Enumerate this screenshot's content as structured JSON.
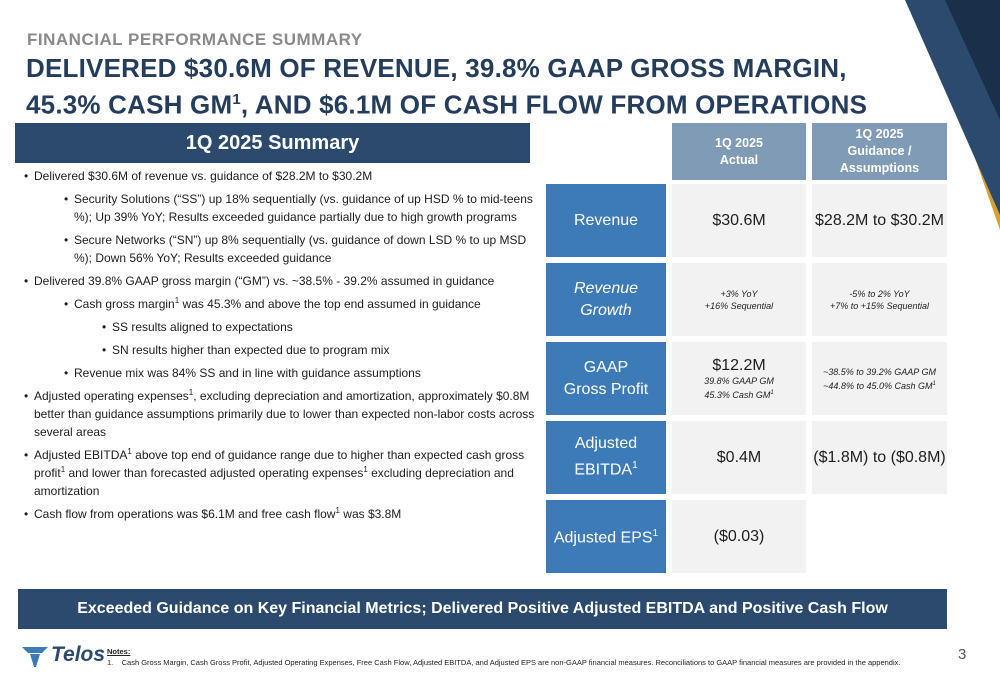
{
  "eyebrow": "FINANCIAL PERFORMANCE SUMMARY",
  "headline": {
    "line1": "DELIVERED $30.6M OF REVENUE, 39.8% GAAP GROSS MARGIN,",
    "line2_a": "45.3% CASH GM",
    "line2_sup": "1",
    "line2_b": ", AND $6.1M OF CASH FLOW FROM OPERATIONS"
  },
  "summary": {
    "title": "1Q 2025 Summary",
    "bullets": [
      {
        "level": 1,
        "parts": [
          "Delivered $30.6M of revenue vs. guidance of $28.2M to $30.2M"
        ]
      },
      {
        "level": 2,
        "parts": [
          "Security Solutions (“SS”) up 18% sequentially (vs. guidance of up HSD % to mid-teens %); Up 39% YoY; Results exceeded guidance partially due to high growth programs"
        ]
      },
      {
        "level": 2,
        "parts": [
          "Secure Networks (“SN”) up 8% sequentially (vs. guidance of down LSD % to up MSD %); Down 56% YoY; Results exceeded guidance"
        ]
      },
      {
        "level": 1,
        "parts": [
          "Delivered 39.8% GAAP gross margin (“GM”) vs. ~38.5% - 39.2% assumed in guidance"
        ]
      },
      {
        "level": 2,
        "parts": [
          "Cash gross margin",
          "1",
          " was 45.3% and above the top end assumed in guidance"
        ]
      },
      {
        "level": 3,
        "parts": [
          "SS results aligned to expectations"
        ]
      },
      {
        "level": 3,
        "parts": [
          "SN results higher than expected due to program mix"
        ]
      },
      {
        "level": 2,
        "parts": [
          "Revenue mix was 84% SS and in line with guidance assumptions"
        ]
      },
      {
        "level": 1,
        "parts": [
          "Adjusted operating expenses",
          "1",
          ", excluding depreciation and amortization, approximately $0.8M better than guidance assumptions primarily due to lower than expected non-labor costs across several areas"
        ]
      },
      {
        "level": 1,
        "parts": [
          "Adjusted EBITDA",
          "1",
          " above top end of guidance range due to higher than expected cash gross profit",
          "1",
          " and lower than forecasted adjusted operating expenses",
          "1",
          " excluding depreciation and amortization"
        ]
      },
      {
        "level": 1,
        "parts": [
          "Cash flow from operations was $6.1M and free cash flow",
          "1",
          " was $3.8M"
        ]
      }
    ]
  },
  "table": {
    "col_actual": [
      "1Q 2025",
      "Actual"
    ],
    "col_guidance": [
      "1Q 2025",
      "Guidance /",
      "Assumptions"
    ],
    "rows": [
      {
        "label": "Revenue",
        "actual": "$30.6M",
        "guidance": "$28.2M to $30.2M"
      },
      {
        "label": "Revenue Growth",
        "actual_lines": [
          "+3% YoY",
          "+16% Sequential"
        ],
        "guidance_lines": [
          "-5% to 2% YoY",
          "+7% to +15% Sequential"
        ]
      },
      {
        "label_lines": [
          "GAAP",
          "Gross Profit"
        ],
        "actual": "$12.2M",
        "actual_lines": [
          "39.8% GAAP GM",
          "45.3% Cash GM"
        ],
        "guidance_lines": [
          "~38.5% to 39.2% GAAP GM",
          "~44.8% to 45.0% Cash GM"
        ]
      },
      {
        "label_lines": [
          "Adjusted",
          "EBITDA"
        ],
        "actual": "$0.4M",
        "guidance": "($1.8M) to ($0.8M)"
      },
      {
        "label": "Adjusted EPS",
        "actual": "($0.03)",
        "guidance": ""
      }
    ],
    "sup": "1"
  },
  "banner": "Exceeded Guidance on Key Financial Metrics; Delivered Positive Adjusted EBITDA and Positive Cash Flow",
  "logo": "Telos",
  "notes": {
    "heading": "Notes:",
    "number": "1.",
    "text": "Cash Gross Margin, Cash Gross Profit, Adjusted Operating Expenses, Free Cash Flow, Adjusted EBITDA, and Adjusted EPS are non-GAAP financial measures. Reconciliations to GAAP financial measures are provided in the appendix."
  },
  "page_number": "3",
  "colors": {
    "navy": "#2b4a6e",
    "blue": "#3d7ab8",
    "slate": "#7f9bb5",
    "cell": "#f2f2f2",
    "headline": "#253d5c"
  }
}
